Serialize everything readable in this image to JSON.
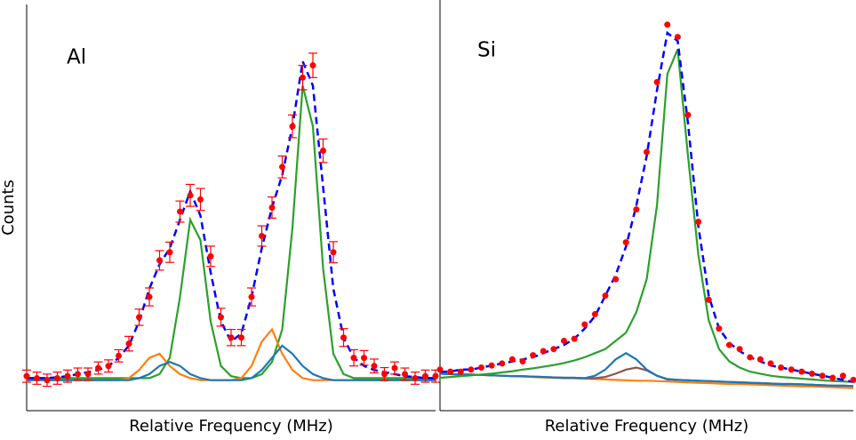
{
  "chart_data": [
    {
      "type": "line",
      "annotation": "Al",
      "xlabel": "Relative Frequency (MHz)",
      "ylabel": "Counts",
      "xlim": [
        0,
        100
      ],
      "ylim": [
        0,
        100
      ],
      "x": [
        0,
        2.5,
        5,
        7.5,
        10,
        12.5,
        15,
        17.5,
        20,
        22.5,
        25,
        27.5,
        30,
        32.5,
        35,
        37.5,
        40,
        42.5,
        45,
        47.5,
        50,
        52.5,
        55,
        57.5,
        60,
        62.5,
        65,
        67.5,
        70,
        72.5,
        75,
        77.5,
        80,
        82.5,
        85,
        87.5,
        90,
        92.5,
        95,
        97.5,
        100
      ],
      "series": [
        {
          "color": "#2ca02c",
          "values": [
            8,
            8,
            8,
            8,
            8,
            8,
            8,
            8,
            8,
            8,
            8,
            8,
            8,
            9,
            13,
            28,
            47,
            42,
            22,
            11,
            8.5,
            8,
            8,
            9,
            12,
            20,
            45,
            80,
            70,
            35,
            14,
            9,
            8,
            8,
            8,
            8,
            8,
            8,
            8,
            8,
            8
          ]
        },
        {
          "color": "#ff7f0e",
          "values": [
            7.5,
            7.5,
            7.5,
            7.5,
            7.5,
            7.5,
            7.5,
            7.5,
            7.5,
            7.5,
            8,
            10,
            13,
            14,
            11,
            9,
            8,
            7.5,
            7.5,
            7.5,
            7.5,
            8,
            11,
            17,
            20,
            14,
            10,
            8,
            7.5,
            7.5,
            7.5,
            7.5,
            7.5,
            7.5,
            7.5,
            7.5,
            7.5,
            7.5,
            7.5,
            7.5,
            7.5
          ]
        },
        {
          "color": "#1f77b4",
          "values": [
            7.5,
            7.5,
            7.5,
            7.5,
            7.5,
            7.5,
            7.5,
            7.5,
            7.5,
            7.5,
            7.5,
            8,
            9,
            11,
            12,
            11,
            9,
            8,
            7.5,
            7.5,
            7.5,
            7.5,
            8,
            10,
            13,
            16,
            14,
            11,
            9,
            8,
            7.5,
            7.5,
            7.5,
            7.5,
            7.5,
            7.5,
            7.5,
            7.5,
            7.5,
            7.5,
            7.5
          ]
        },
        {
          "color": "#0000ff",
          "dashed": true,
          "values": [
            8,
            8,
            8,
            8.2,
            8.5,
            9,
            9.5,
            10,
            11,
            13,
            16,
            22,
            30,
            36,
            40,
            47,
            54,
            48,
            34,
            22,
            17,
            19,
            28,
            40,
            50,
            58,
            70,
            86,
            80,
            55,
            30,
            18,
            13,
            11,
            10,
            9.5,
            9,
            8.5,
            8.3,
            8,
            8
          ]
        }
      ],
      "points": {
        "color": "#ff0000",
        "values": [
          8.5,
          8,
          7.5,
          8,
          8.5,
          9,
          9,
          10.5,
          11,
          13.5,
          16.5,
          23,
          28,
          37,
          39,
          49,
          53,
          52,
          38,
          23,
          18,
          18,
          28,
          43,
          50,
          60,
          70,
          82,
          85,
          64,
          39,
          18,
          13,
          13,
          11,
          9,
          10.5,
          9,
          8,
          8.5,
          8.5
        ],
        "errors": [
          1.5,
          1.5,
          1.5,
          1.5,
          1.5,
          1.5,
          1.5,
          1.5,
          1.5,
          1.5,
          1.8,
          2,
          2.2,
          2.4,
          2.5,
          2.6,
          2.7,
          2.7,
          2.5,
          2.2,
          2,
          2,
          2.2,
          2.5,
          2.6,
          2.7,
          2.8,
          3,
          3,
          2.9,
          2.6,
          2.2,
          2,
          1.8,
          1.7,
          1.6,
          1.5,
          1.5,
          1.5,
          1.5,
          1.5
        ]
      }
    },
    {
      "type": "line",
      "annotation": "Si",
      "xlabel": "Relative Frequency (MHz)",
      "xlim": [
        0,
        100
      ],
      "ylim": [
        0,
        100
      ],
      "x": [
        0,
        2.5,
        5,
        7.5,
        10,
        12.5,
        15,
        17.5,
        20,
        22.5,
        25,
        27.5,
        30,
        32.5,
        35,
        37.5,
        40,
        42.5,
        45,
        47.5,
        50,
        52.5,
        55,
        57.5,
        60,
        62.5,
        65,
        67.5,
        70,
        72.5,
        75,
        77.5,
        80,
        82.5,
        85,
        87.5,
        90,
        92.5,
        95,
        97.5,
        100
      ],
      "series": [
        {
          "color": "#ff7f0e",
          "values": [
            9,
            8.9,
            8.8,
            8.7,
            8.7,
            8.6,
            8.5,
            8.4,
            8.3,
            8.2,
            8.1,
            8,
            7.9,
            7.9,
            7.8,
            7.7,
            7.6,
            7.5,
            7.4,
            7.3,
            7.3,
            7.2,
            7.1,
            7,
            6.9,
            6.8,
            6.7,
            6.6,
            6.5,
            6.5,
            6.4,
            6.3,
            6.2,
            6.1,
            6,
            5.9,
            5.9,
            5.8,
            5.7,
            5.6,
            5.5
          ]
        },
        {
          "color": "#8c564b",
          "values": [
            9,
            8.9,
            8.8,
            8.8,
            8.7,
            8.6,
            8.5,
            8.4,
            8.4,
            8.3,
            8.2,
            8.1,
            8,
            8,
            7.9,
            7.9,
            8.2,
            9,
            10,
            10.5,
            9.8,
            8.5,
            7.7,
            7.5,
            7.4,
            7.3,
            7.2,
            7.1,
            7,
            6.9,
            6.8,
            6.7,
            6.6,
            6.5,
            6.5,
            6.4,
            6.3,
            6.2,
            6.1,
            6.1,
            6
          ]
        },
        {
          "color": "#1f77b4",
          "values": [
            9,
            8.9,
            8.8,
            8.8,
            8.7,
            8.6,
            8.5,
            8.4,
            8.4,
            8.3,
            8.2,
            8.1,
            8,
            8,
            7.9,
            8.5,
            10,
            12.5,
            14,
            12.5,
            10,
            8.5,
            7.6,
            7.5,
            7.4,
            7.3,
            7.2,
            7.1,
            7,
            6.9,
            6.8,
            6.7,
            6.6,
            6.5,
            6.5,
            6.4,
            6.3,
            6.2,
            6.1,
            6.1,
            6
          ]
        },
        {
          "color": "#2ca02c",
          "values": [
            8,
            8.2,
            8.4,
            8.6,
            8.8,
            9,
            9.3,
            9.6,
            10,
            10.3,
            10.7,
            11.1,
            11.6,
            12.2,
            13,
            14,
            15,
            17,
            19,
            24,
            32,
            50,
            82,
            88,
            62,
            38,
            22,
            15,
            12,
            10.5,
            9.5,
            9,
            8.5,
            8.2,
            8,
            7.8,
            7.6,
            7.4,
            7.2,
            7.1,
            7
          ]
        },
        {
          "color": "#0000ff",
          "dashed": true,
          "values": [
            9.5,
            9.5,
            10,
            10,
            10.5,
            11,
            11.5,
            12,
            12.5,
            13,
            14,
            15,
            16,
            17.5,
            20,
            23,
            28,
            33,
            40,
            50,
            62,
            78,
            92,
            90,
            70,
            45,
            28,
            20,
            16.5,
            14.5,
            13,
            12,
            11,
            10.5,
            10,
            9.5,
            9,
            8.5,
            8,
            7.5,
            7
          ]
        }
      ],
      "points": {
        "color": "#ff0000",
        "values": [
          10,
          9.5,
          9.5,
          10,
          10.5,
          11,
          11.5,
          12.5,
          12,
          13.5,
          14.5,
          15,
          17,
          17.5,
          21,
          23.5,
          28,
          32,
          41,
          49,
          63,
          80,
          94,
          91,
          72,
          46,
          27,
          20,
          16,
          15,
          13,
          12.5,
          11.5,
          10.5,
          10,
          9.5,
          9,
          8.5,
          8,
          8.5,
          7.5
        ]
      }
    }
  ]
}
